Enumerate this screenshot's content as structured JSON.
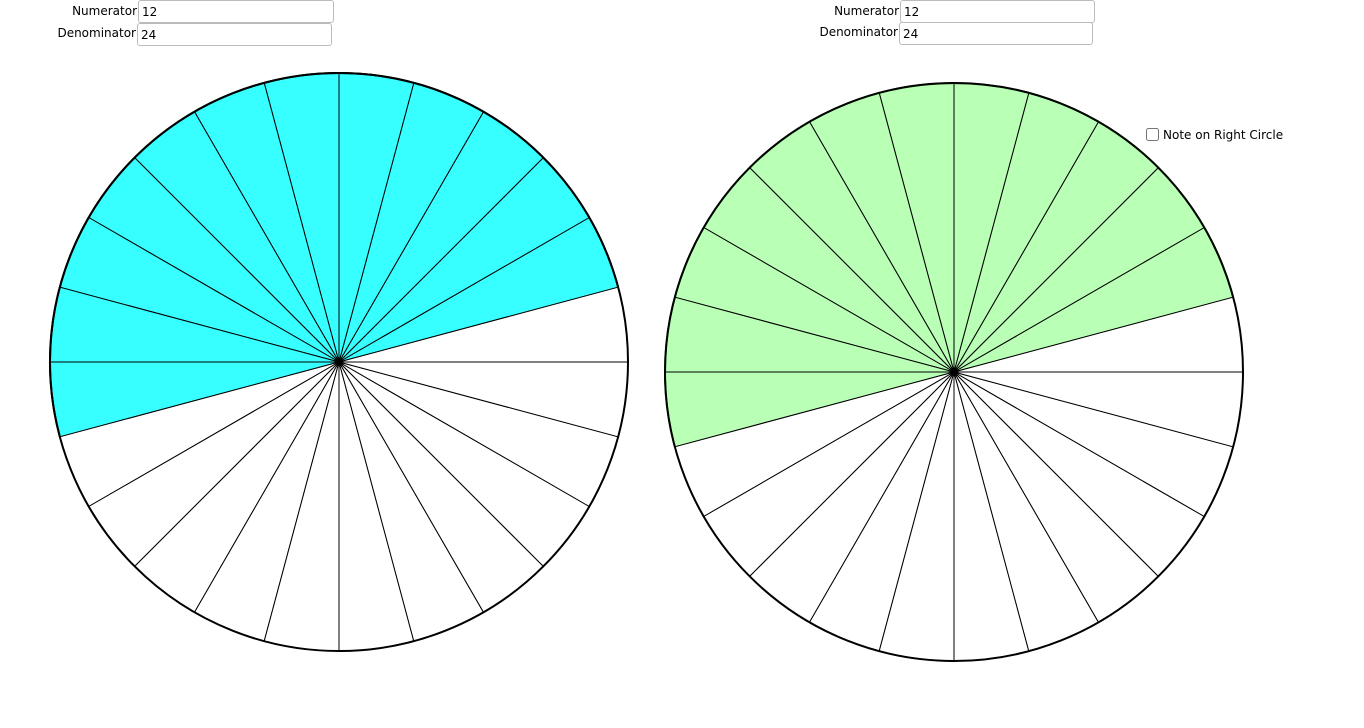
{
  "left": {
    "numerator_label": "Numerator",
    "numerator": 12,
    "denominator_label": "Denominator",
    "denominator": 24,
    "fill": "#38ffff",
    "edge": "#000000"
  },
  "right": {
    "numerator_label": "Numerator",
    "numerator": 12,
    "denominator_label": "Denominator",
    "denominator": 24,
    "fill": "#b9ffb5",
    "edge": "#2a9a2a"
  },
  "checkbox": {
    "label": "Note on Right Circle",
    "checked": false
  }
}
